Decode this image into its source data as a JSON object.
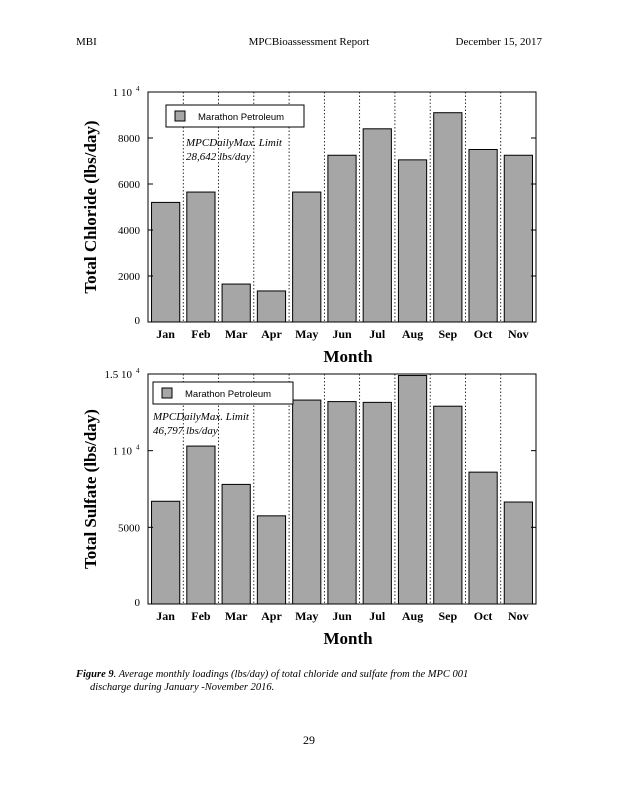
{
  "header": {
    "left": "MBI",
    "center": "MPCBioassessment Report",
    "right": "December  15, 2017"
  },
  "chart_data": [
    {
      "type": "bar",
      "categories": [
        "Jan",
        "Feb",
        "Mar",
        "Apr",
        "May",
        "Jun",
        "Jul",
        "Aug",
        "Sep",
        "Oct",
        "Nov"
      ],
      "series": [
        {
          "name": "Marathon  Petroleum",
          "values": [
            5200,
            5650,
            1650,
            1350,
            5650,
            7250,
            8400,
            7050,
            9100,
            7500,
            7250
          ]
        }
      ],
      "xlabel": "Month",
      "ylabel": "Total  Chloride  (lbs/day)",
      "ylim": [
        0,
        10000
      ],
      "yticks": [
        {
          "value": 0,
          "label": "0"
        },
        {
          "value": 2000,
          "label": "2000"
        },
        {
          "value": 4000,
          "label": "4000"
        },
        {
          "value": 6000,
          "label": "6000"
        },
        {
          "value": 8000,
          "label": "8000"
        },
        {
          "value": 10000,
          "label": "1 10",
          "exp": "4"
        }
      ],
      "annotation": [
        "MPCDailyMax.  Limit",
        "28,642  lbs/day"
      ],
      "legend_position": "top-left",
      "grid": "vertical dotted",
      "bar_color": "#a6a6a6"
    },
    {
      "type": "bar",
      "categories": [
        "Jan",
        "Feb",
        "Mar",
        "Apr",
        "May",
        "Jun",
        "Jul",
        "Aug",
        "Sep",
        "Oct",
        "Nov"
      ],
      "series": [
        {
          "name": "Marathon  Petroleum",
          "values": [
            6700,
            10300,
            7800,
            5750,
            13300,
            13200,
            13150,
            14900,
            12900,
            8600,
            6650
          ]
        }
      ],
      "xlabel": "Month",
      "ylabel": "Total  Sulfate  (lbs/day)",
      "ylim": [
        0,
        15000
      ],
      "yticks": [
        {
          "value": 0,
          "label": "0"
        },
        {
          "value": 5000,
          "label": "5000"
        },
        {
          "value": 10000,
          "label": "1 10",
          "exp": "4"
        },
        {
          "value": 15000,
          "label": "1.5  10",
          "exp": "4"
        }
      ],
      "annotation": [
        "MPCDailyMax.  Limit",
        "46,797  lbs/day"
      ],
      "legend_position": "top-left",
      "grid": "vertical dotted",
      "bar_color": "#a6a6a6"
    }
  ],
  "caption": {
    "label": "Figure  9",
    "line1": ".  Average   monthly   loadings   (lbs/day)   of total  chloride  and  sulfate  from  the  MPC  001",
    "line2": "discharge   during  January  -November    2016."
  },
  "page_number": "29"
}
